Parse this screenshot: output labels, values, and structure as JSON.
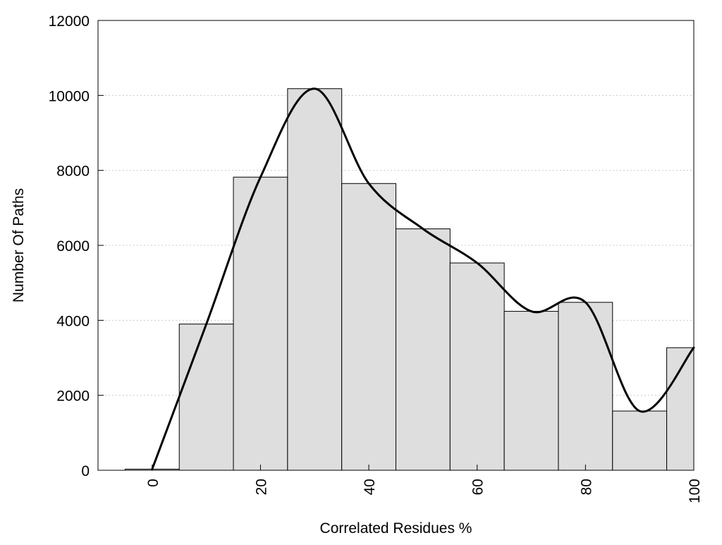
{
  "chart_data": {
    "type": "bar",
    "title": "",
    "xlabel": "Correlated Residues %",
    "ylabel": "Number Of Paths",
    "xlim": [
      -10,
      100
    ],
    "ylim": [
      0,
      12000
    ],
    "x_ticks": [
      0,
      20,
      40,
      60,
      80,
      100
    ],
    "y_ticks": [
      0,
      2000,
      4000,
      6000,
      8000,
      10000,
      12000
    ],
    "grid": "horizontal dotted",
    "bin_width": 10,
    "bars": [
      {
        "x": 0,
        "value": 30
      },
      {
        "x": 10,
        "value": 3900
      },
      {
        "x": 20,
        "value": 7820
      },
      {
        "x": 30,
        "value": 10180
      },
      {
        "x": 40,
        "value": 7650
      },
      {
        "x": 50,
        "value": 6440
      },
      {
        "x": 60,
        "value": 5530
      },
      {
        "x": 70,
        "value": 4240
      },
      {
        "x": 80,
        "value": 4480
      },
      {
        "x": 90,
        "value": 1580
      },
      {
        "x": 100,
        "value": 3270
      }
    ],
    "curve": {
      "x": [
        0,
        10,
        20,
        30,
        40,
        50,
        60,
        70,
        80,
        90,
        100
      ],
      "y": [
        30,
        3900,
        7820,
        10180,
        7650,
        6440,
        5530,
        4240,
        4480,
        1580,
        3270
      ]
    },
    "colors": {
      "bar_fill": "#dedede",
      "bar_stroke": "#000000",
      "curve": "#000000",
      "grid": "#cccccc"
    }
  }
}
